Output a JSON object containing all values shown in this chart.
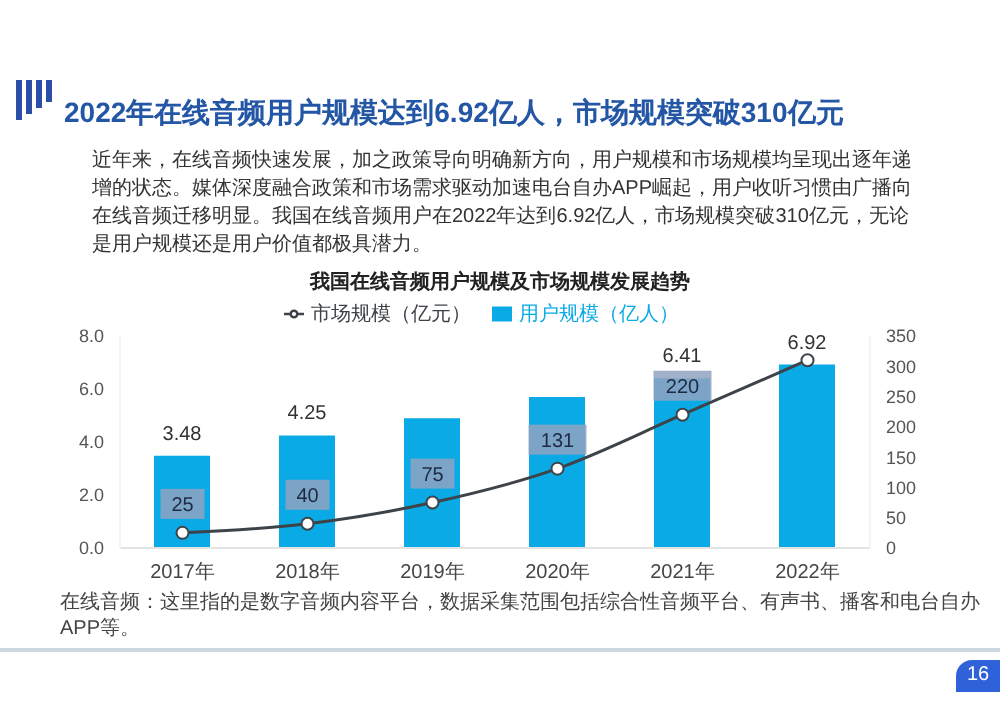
{
  "chart_data": {
    "type": "bar",
    "title": "2022年在线音频用户规模达到6.92亿人，市场规模突破310亿元",
    "subtitle": "近年来，在线音频快速发展，加之政策导向明确新方向，用户规模和市场规模均呈现出逐年递增的状态。媒体深度融合政策和市场需求驱动加速电台自办APP崛起，用户收听习惯由广播向在线音频迁移明显。我国在线音频用户在2022年达到6.92亿人，市场规模突破310亿元，无论是用户规模还是用户价值都极具潜力。",
    "xlabel": "我国在线音频用户规模及市场规模发展趋势",
    "categories": [
      "2017年",
      "2018年",
      "2019年",
      "2020年",
      "2021年",
      "2022年"
    ],
    "series": [
      {
        "name": "用户规模（亿人）",
        "color": "#0aaae6",
        "values": [
          3.48,
          4.25,
          4.9,
          5.7,
          6.41,
          6.92
        ],
        "value_labels": [
          "3.48",
          "4.25",
          null,
          null,
          "6.41",
          "6.92"
        ]
      },
      {
        "name": "市场规模（亿元）",
        "type": "line",
        "axis": "y2",
        "color": "#3d4349",
        "values": [
          25,
          40,
          75,
          131,
          220,
          310
        ],
        "value_labels": [
          "25",
          "40",
          "75",
          "131",
          "220",
          null
        ],
        "marker": "circle"
      }
    ],
    "ylim": [
      0,
      8
    ],
    "yticks": [
      {
        "value": 0,
        "label": "0.0"
      },
      {
        "value": 2,
        "label": "2.0"
      },
      {
        "value": 4,
        "label": "4.0"
      },
      {
        "value": 6,
        "label": "6.0"
      },
      {
        "value": 8,
        "label": "8.0"
      }
    ],
    "y2lim": [
      0,
      350
    ],
    "y2ticks": [
      0,
      50,
      100,
      150,
      200,
      250,
      300,
      350
    ],
    "legend": "top",
    "annotations": [
      "在线音频：这里指的是数字音频内容平台，数据采集范围包括综合性音频平台、有声书、播客和电台自办APP等。",
      "16"
    ]
  }
}
